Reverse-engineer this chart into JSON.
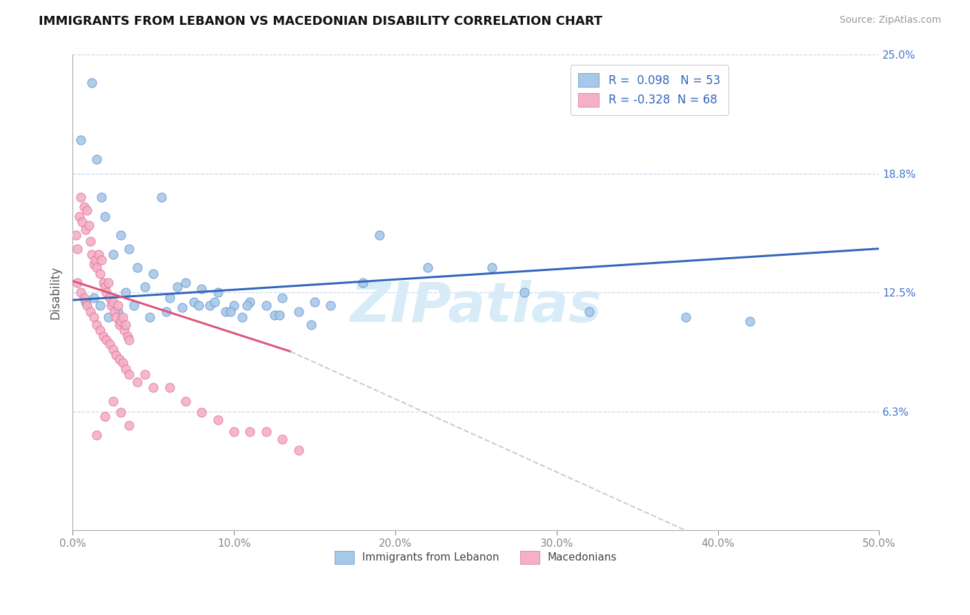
{
  "title": "IMMIGRANTS FROM LEBANON VS MACEDONIAN DISABILITY CORRELATION CHART",
  "source": "Source: ZipAtlas.com",
  "xlabel_blue": "Immigrants from Lebanon",
  "xlabel_pink": "Macedonians",
  "ylabel": "Disability",
  "xlim": [
    0.0,
    0.5
  ],
  "ylim": [
    0.0,
    0.25
  ],
  "yticks": [
    0.0,
    0.0625,
    0.125,
    0.1875,
    0.25
  ],
  "ytick_labels": [
    "",
    "6.3%",
    "12.5%",
    "18.8%",
    "25.0%"
  ],
  "xticks": [
    0.0,
    0.1,
    0.2,
    0.3,
    0.4,
    0.5
  ],
  "xtick_labels": [
    "0.0%",
    "10.0%",
    "20.0%",
    "30.0%",
    "40.0%",
    "50.0%"
  ],
  "blue_R": 0.098,
  "blue_N": 53,
  "pink_R": -0.328,
  "pink_N": 68,
  "blue_color": "#a8c8e8",
  "pink_color": "#f4b0c8",
  "blue_edge_color": "#5588cc",
  "pink_edge_color": "#dd6688",
  "blue_line_color": "#3366bb",
  "pink_line_color": "#dd5577",
  "dash_color": "#cccccc",
  "legend_R_color": "#3366bb",
  "watermark_text": "ZIPatlas",
  "watermark_color": "#d8ecf8",
  "blue_line_x0": 0.0,
  "blue_line_y0": 0.121,
  "blue_line_x1": 0.5,
  "blue_line_y1": 0.148,
  "pink_line_x0": 0.0,
  "pink_line_y0": 0.131,
  "pink_line_xend_solid": 0.135,
  "pink_line_yend_solid": 0.094,
  "pink_line_xend_dash": 0.38,
  "pink_line_yend_dash": 0.0,
  "blue_scatter_x": [
    0.005,
    0.012,
    0.015,
    0.018,
    0.02,
    0.025,
    0.03,
    0.035,
    0.04,
    0.045,
    0.05,
    0.055,
    0.06,
    0.065,
    0.07,
    0.075,
    0.08,
    0.085,
    0.09,
    0.095,
    0.1,
    0.105,
    0.11,
    0.12,
    0.125,
    0.13,
    0.14,
    0.15,
    0.16,
    0.18,
    0.19,
    0.22,
    0.26,
    0.28,
    0.32,
    0.38,
    0.42,
    0.008,
    0.013,
    0.017,
    0.022,
    0.028,
    0.033,
    0.038,
    0.048,
    0.058,
    0.068,
    0.078,
    0.088,
    0.098,
    0.108,
    0.128,
    0.148
  ],
  "blue_scatter_y": [
    0.205,
    0.235,
    0.195,
    0.175,
    0.165,
    0.145,
    0.155,
    0.148,
    0.138,
    0.128,
    0.135,
    0.175,
    0.122,
    0.128,
    0.13,
    0.12,
    0.127,
    0.118,
    0.125,
    0.115,
    0.118,
    0.112,
    0.12,
    0.118,
    0.113,
    0.122,
    0.115,
    0.12,
    0.118,
    0.13,
    0.155,
    0.138,
    0.138,
    0.125,
    0.115,
    0.112,
    0.11,
    0.12,
    0.122,
    0.118,
    0.112,
    0.115,
    0.125,
    0.118,
    0.112,
    0.115,
    0.117,
    0.118,
    0.12,
    0.115,
    0.118,
    0.113,
    0.108
  ],
  "pink_scatter_x": [
    0.002,
    0.003,
    0.004,
    0.005,
    0.006,
    0.007,
    0.008,
    0.009,
    0.01,
    0.011,
    0.012,
    0.013,
    0.014,
    0.015,
    0.016,
    0.017,
    0.018,
    0.019,
    0.02,
    0.021,
    0.022,
    0.023,
    0.024,
    0.025,
    0.026,
    0.027,
    0.028,
    0.029,
    0.03,
    0.031,
    0.032,
    0.033,
    0.034,
    0.035,
    0.003,
    0.005,
    0.007,
    0.009,
    0.011,
    0.013,
    0.015,
    0.017,
    0.019,
    0.021,
    0.023,
    0.025,
    0.027,
    0.029,
    0.031,
    0.033,
    0.035,
    0.04,
    0.045,
    0.05,
    0.06,
    0.07,
    0.08,
    0.09,
    0.1,
    0.11,
    0.12,
    0.13,
    0.14,
    0.015,
    0.02,
    0.025,
    0.03,
    0.035
  ],
  "pink_scatter_y": [
    0.155,
    0.148,
    0.165,
    0.175,
    0.162,
    0.17,
    0.158,
    0.168,
    0.16,
    0.152,
    0.145,
    0.14,
    0.142,
    0.138,
    0.145,
    0.135,
    0.142,
    0.13,
    0.128,
    0.125,
    0.13,
    0.122,
    0.118,
    0.12,
    0.115,
    0.112,
    0.118,
    0.108,
    0.11,
    0.112,
    0.105,
    0.108,
    0.102,
    0.1,
    0.13,
    0.125,
    0.122,
    0.118,
    0.115,
    0.112,
    0.108,
    0.105,
    0.102,
    0.1,
    0.098,
    0.095,
    0.092,
    0.09,
    0.088,
    0.085,
    0.082,
    0.078,
    0.082,
    0.075,
    0.075,
    0.068,
    0.062,
    0.058,
    0.052,
    0.052,
    0.052,
    0.048,
    0.042,
    0.05,
    0.06,
    0.068,
    0.062,
    0.055
  ]
}
